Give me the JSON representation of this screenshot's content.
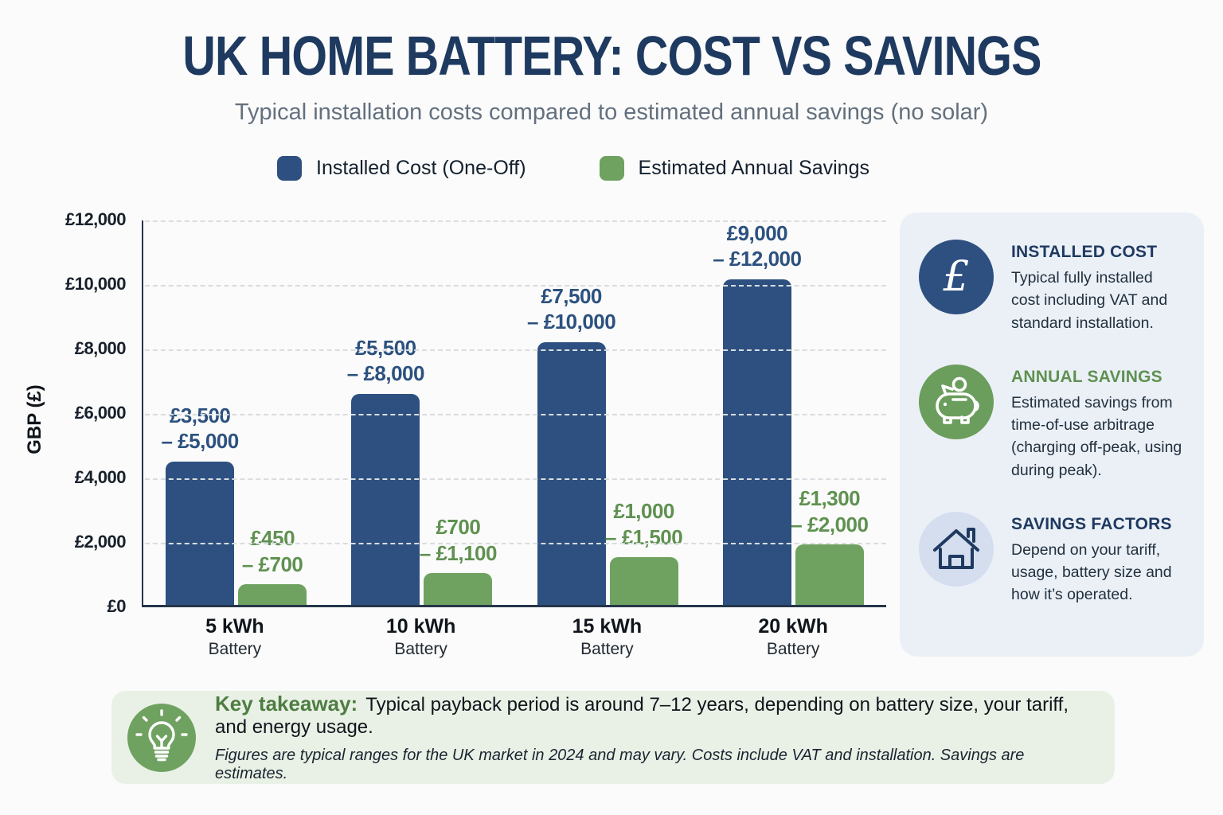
{
  "header": {
    "title": "UK HOME BATTERY: COST VS SAVINGS",
    "subtitle": "Typical installation costs compared to estimated annual savings (no solar)"
  },
  "legend": [
    {
      "label": "Installed Cost (One-Off)",
      "color": "#2d5080"
    },
    {
      "label": "Estimated Annual Savings",
      "color": "#6fa260"
    }
  ],
  "chart_data": {
    "type": "bar",
    "title": "UK Home Battery: Cost vs Savings",
    "xlabel": "",
    "ylabel": "GBP (£)",
    "ylim": [
      0,
      12000
    ],
    "ytick_step": 2000,
    "ytick_labels": [
      "£0",
      "£2,000",
      "£4,000",
      "£6,000",
      "£8,000",
      "£10,000",
      "£12,000"
    ],
    "grid": "horizontal-dashed",
    "legend_position": "top",
    "categories": [
      "5 kWh",
      "10 kWh",
      "15 kWh",
      "20 kWh"
    ],
    "category_sub": "Battery",
    "series": [
      {
        "name": "Installed Cost (One-Off)",
        "color": "#2d5080",
        "label_color": "#2c517f",
        "bar_values": [
          4450,
          6550,
          8150,
          10100
        ],
        "range_labels": [
          [
            "£3,500",
            "– £5,000"
          ],
          [
            "£5,500",
            "– £8,000"
          ],
          [
            "£7,500",
            "– £10,000"
          ],
          [
            "£9,000",
            "– £12,000"
          ]
        ]
      },
      {
        "name": "Estimated Annual Savings",
        "color": "#6fa260",
        "label_color": "#5f9150",
        "bar_values": [
          640,
          980,
          1480,
          1870
        ],
        "range_labels": [
          [
            "£450",
            "– £700"
          ],
          [
            "£700",
            "– £1,100"
          ],
          [
            "£1,000",
            "– £1,500"
          ],
          [
            "£1,300",
            "– £2,000"
          ]
        ]
      }
    ]
  },
  "sidebar": {
    "items": [
      {
        "icon": "pound-icon",
        "icon_bg": "#2d5080",
        "title": "INSTALLED COST",
        "title_color": "#1f3a60",
        "body": "Typical fully installed cost including VAT and standard installation."
      },
      {
        "icon": "piggy-bank-icon",
        "icon_bg": "#6b9d5d",
        "title": "ANNUAL SAVINGS",
        "title_color": "#5f9150",
        "body": "Estimated savings from time-of-use arbitrage (charging off-peak, using during peak)."
      },
      {
        "icon": "house-icon",
        "icon_bg": "#d4deef",
        "title": "SAVINGS FACTORS",
        "title_color": "#1f3a60",
        "body": "Depend on your tariff, usage, battery size and how it’s operated."
      }
    ]
  },
  "footer": {
    "takeaway_label": "Key takeaway:",
    "takeaway_text": "Typical payback period is around 7–12 years, depending on battery size, your tariff, and energy usage.",
    "fine_print": "Figures are typical ranges for the UK market in 2024 and may vary. Costs include VAT and installation. Savings are estimates."
  }
}
